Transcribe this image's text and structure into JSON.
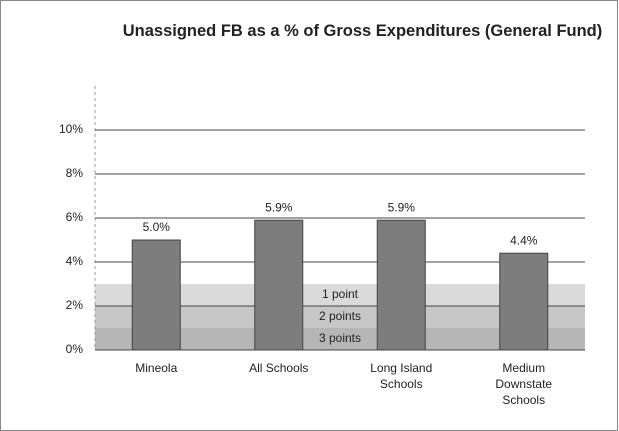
{
  "chart_data": {
    "type": "bar",
    "title": "Unassigned FB as a % of Gross Expenditures (General Fund)",
    "categories": [
      "Mineola",
      "All Schools",
      "Long Island Schools",
      "Medium Downstate Schools"
    ],
    "values": [
      5.0,
      5.9,
      5.9,
      4.4
    ],
    "value_labels": [
      "5.0%",
      "5.9%",
      "5.9%",
      "4.4%"
    ],
    "color": "#7d7d7d",
    "ylim": [
      0,
      12
    ],
    "yticks": [
      {
        "value": 0,
        "label": "0%"
      },
      {
        "value": 2,
        "label": "2%"
      },
      {
        "value": 4,
        "label": "4%"
      },
      {
        "value": 6,
        "label": "6%"
      },
      {
        "value": 8,
        "label": "8%"
      },
      {
        "value": 10,
        "label": "10%"
      }
    ],
    "grid": true,
    "bands": [
      {
        "label": "1 point",
        "from": 2,
        "to": 3,
        "color": "#d4d4d4"
      },
      {
        "label": "2 points",
        "from": 1,
        "to": 2,
        "color": "#bdbdbd"
      },
      {
        "label": "3 points",
        "from": 0,
        "to": 1,
        "color": "#a9a9a9"
      }
    ]
  }
}
